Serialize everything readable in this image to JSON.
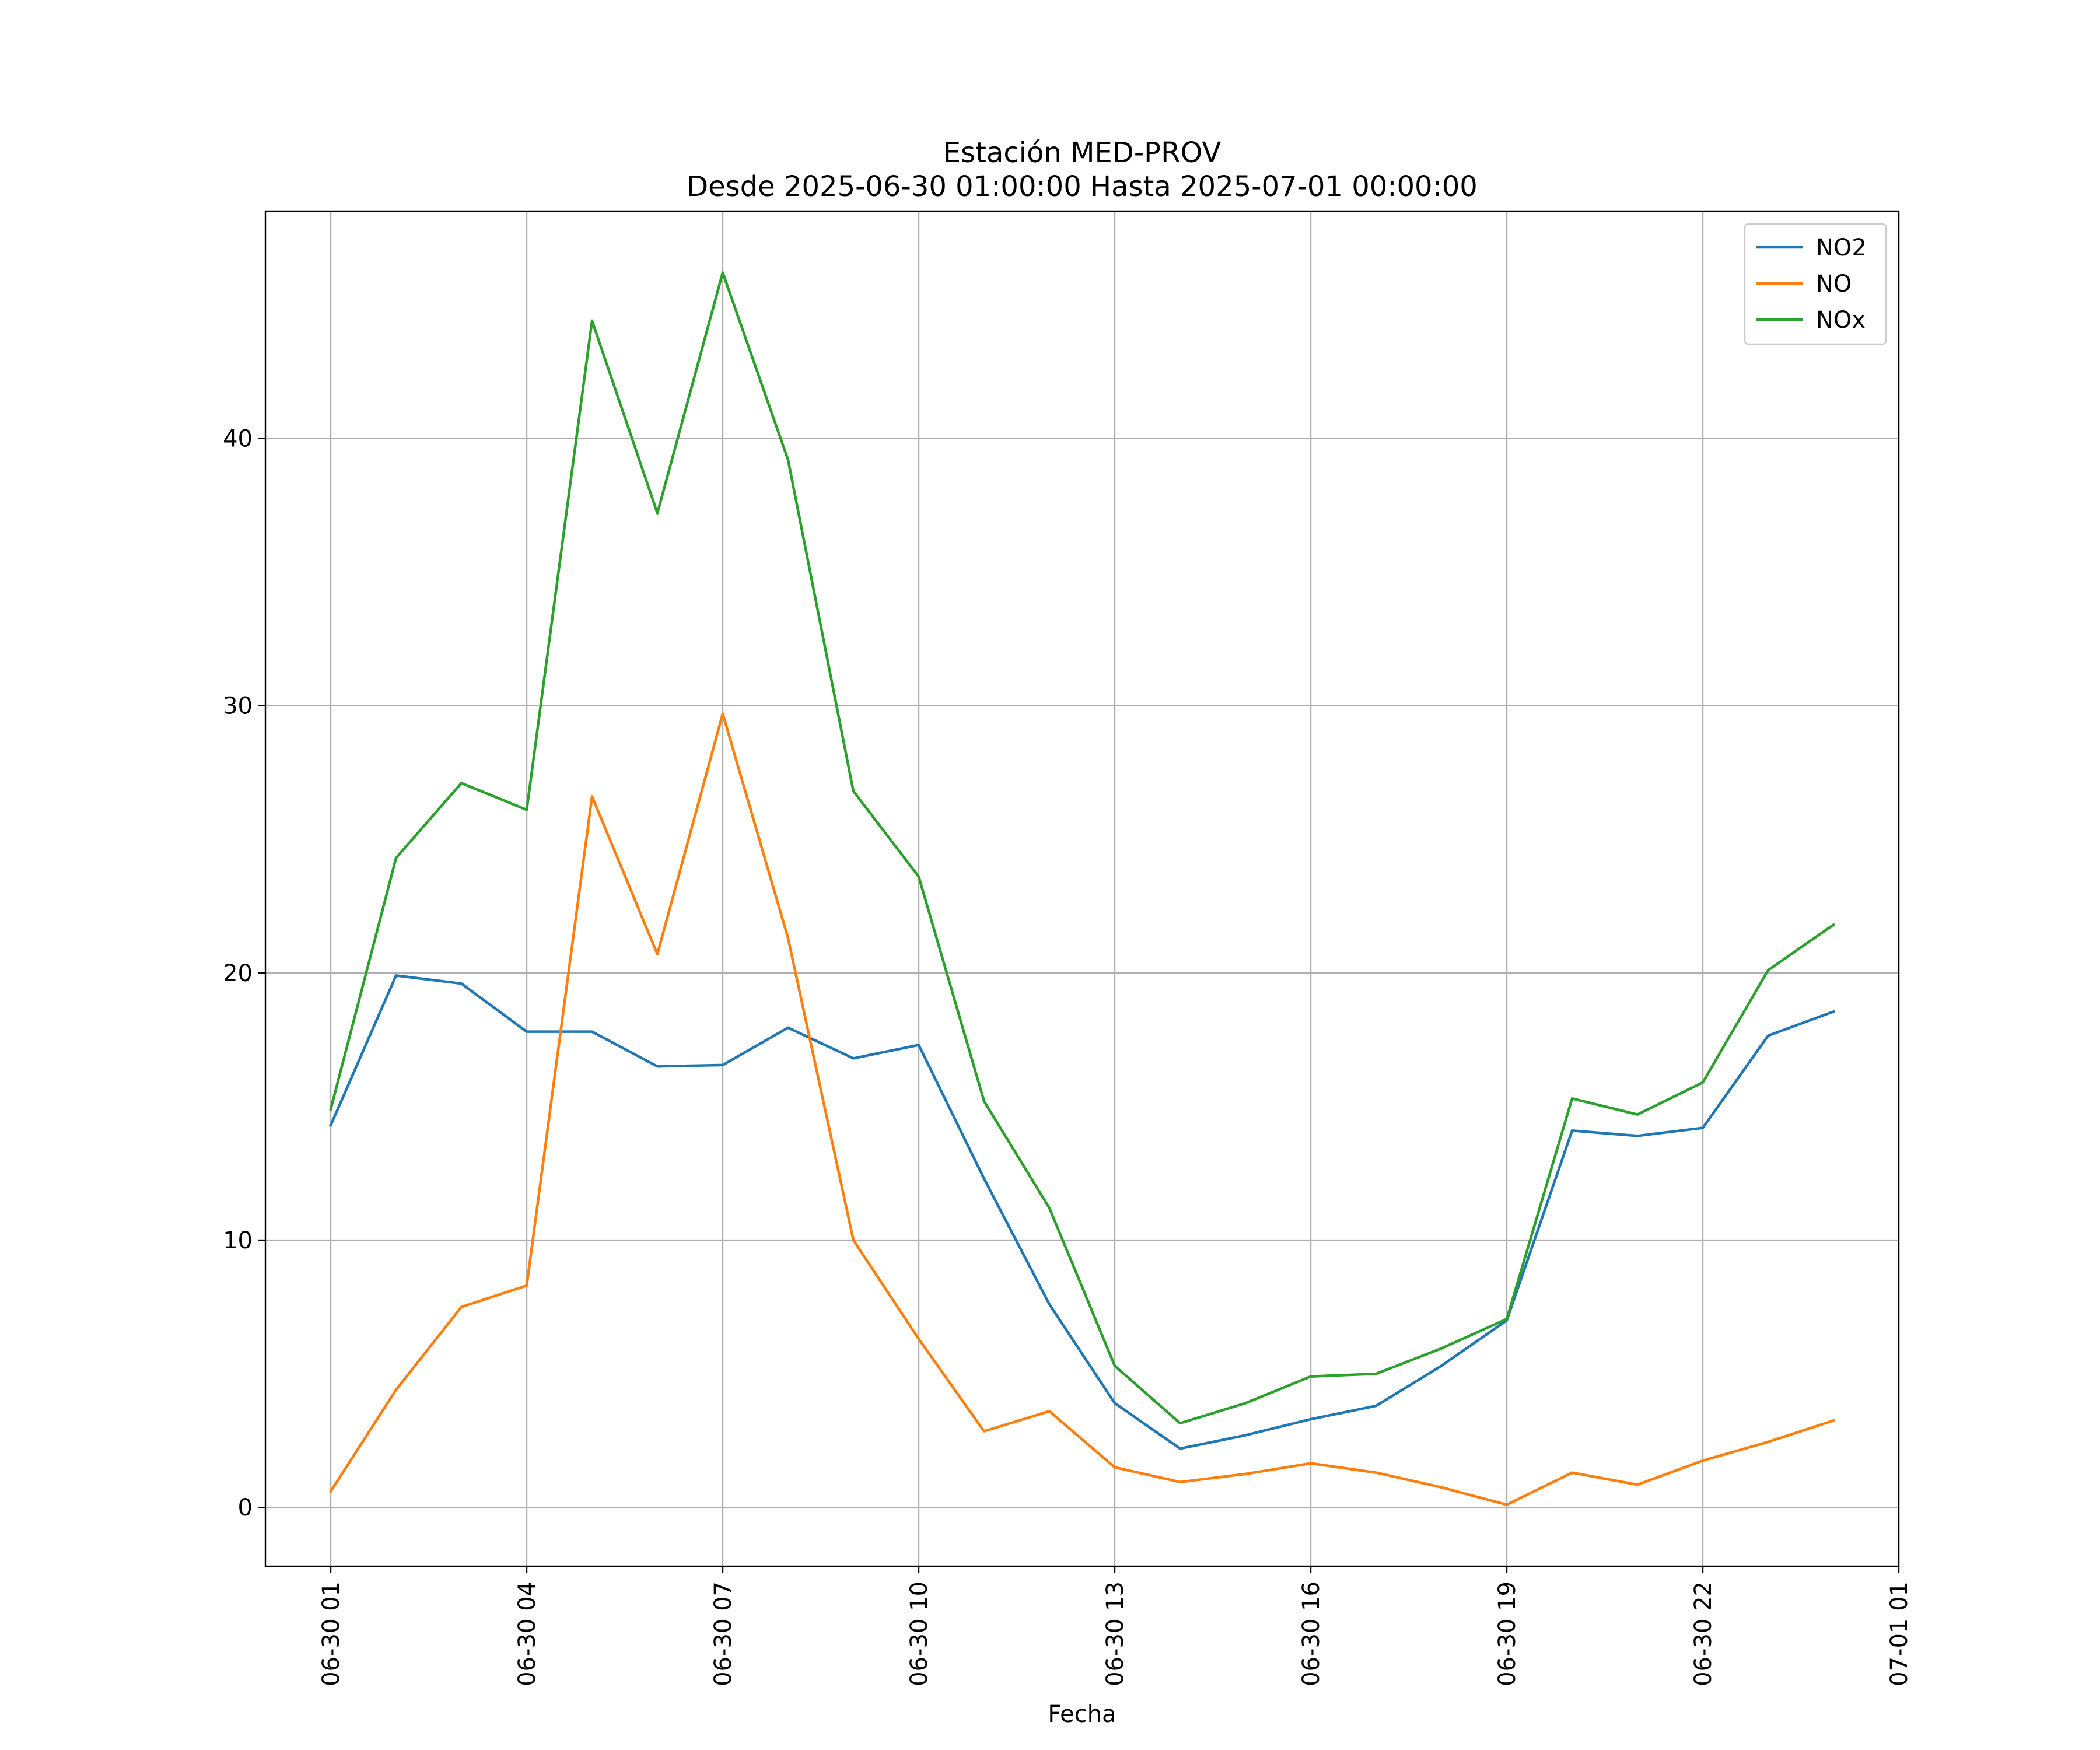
{
  "chart_data": {
    "type": "line",
    "title": [
      "Estación MED-PROV",
      "Desde 2025-06-30 01:00:00 Hasta 2025-07-01 00:00:00"
    ],
    "xlabel": "Fecha",
    "ylabel": "",
    "x": [
      "06-30 01:00",
      "06-30 02:00",
      "06-30 03:00",
      "06-30 04:00",
      "06-30 05:00",
      "06-30 06:00",
      "06-30 07:00",
      "06-30 08:00",
      "06-30 09:00",
      "06-30 10:00",
      "06-30 11:00",
      "06-30 12:00",
      "06-30 13:00",
      "06-30 14:00",
      "06-30 15:00",
      "06-30 16:00",
      "06-30 17:00",
      "06-30 18:00",
      "06-30 19:00",
      "06-30 20:00",
      "06-30 21:00",
      "06-30 22:00",
      "06-30 23:00",
      "07-01 00:00"
    ],
    "xticks": [
      "06-30 01",
      "06-30 04",
      "06-30 07",
      "06-30 10",
      "06-30 13",
      "06-30 16",
      "06-30 19",
      "06-30 22",
      "07-01 01"
    ],
    "xlim": [
      "06-30 00:00",
      "07-01 01:00"
    ],
    "yticks": [
      0,
      10,
      20,
      30,
      40
    ],
    "ylim": [
      -2.2,
      48.5
    ],
    "grid": true,
    "legend_position": "top-right",
    "series": [
      {
        "name": "NO2",
        "color": "#1f77b4",
        "values": [
          14.3,
          19.9,
          19.6,
          17.8,
          17.8,
          16.5,
          16.55,
          17.95,
          16.8,
          17.3,
          12.3,
          7.6,
          3.9,
          2.2,
          2.7,
          3.3,
          3.8,
          5.3,
          7.0,
          14.1,
          13.9,
          14.2,
          17.65,
          18.55
        ]
      },
      {
        "name": "NO",
        "color": "#ff7f0e",
        "values": [
          0.6,
          4.4,
          7.5,
          8.3,
          26.6,
          20.7,
          29.7,
          21.3,
          10.0,
          6.3,
          2.85,
          3.6,
          1.5,
          0.95,
          1.25,
          1.65,
          1.3,
          0.75,
          0.1,
          1.3,
          0.85,
          1.75,
          2.45,
          3.25
        ]
      },
      {
        "name": "NOx",
        "color": "#2ca02c",
        "values": [
          14.9,
          24.3,
          27.1,
          26.1,
          44.4,
          37.2,
          46.2,
          39.2,
          26.8,
          23.6,
          15.2,
          11.2,
          5.3,
          3.15,
          3.9,
          4.9,
          5.0,
          5.95,
          7.05,
          15.3,
          14.7,
          15.9,
          20.1,
          21.8
        ]
      }
    ]
  }
}
